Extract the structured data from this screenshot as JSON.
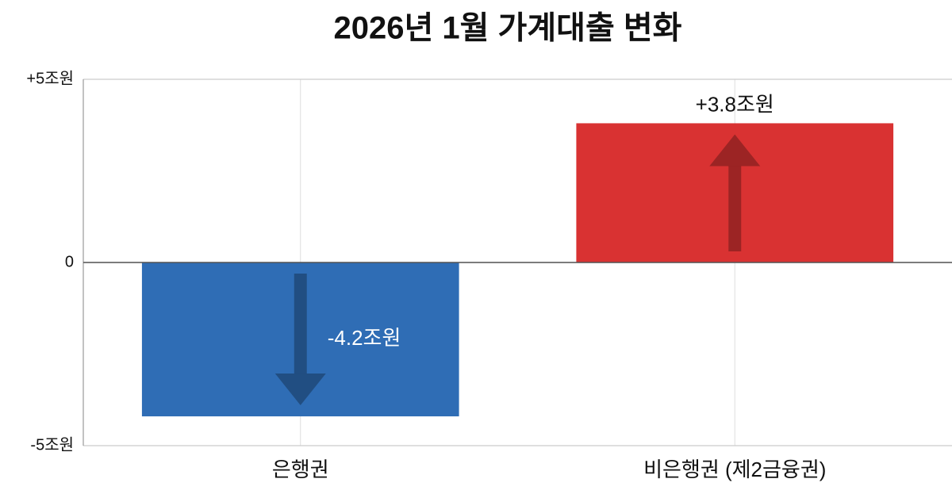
{
  "chart_data": {
    "type": "bar",
    "title": "2026년 1월 가계대출 변화",
    "categories": [
      "은행권",
      "비은행권 (제2금융권)"
    ],
    "values": [
      -4.2,
      3.8
    ],
    "value_labels": [
      "-4.2조원",
      "+3.8조원"
    ],
    "colors": [
      "#2f6db5",
      "#d93232"
    ],
    "ylim": [
      -5,
      5
    ],
    "yticks": [
      {
        "value": 5,
        "label": "+5조원"
      },
      0,
      {
        "value": -5,
        "label": "-5조원"
      }
    ],
    "grid": true
  }
}
